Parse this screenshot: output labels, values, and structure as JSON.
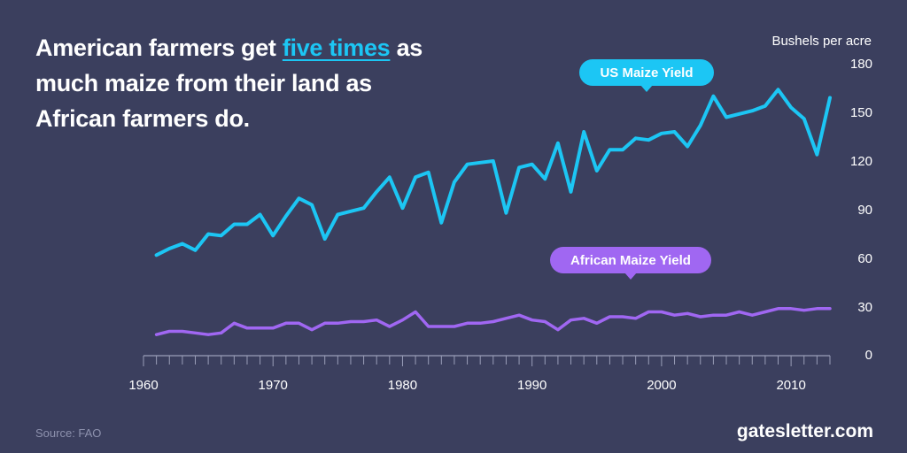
{
  "headline": {
    "part1": "American farmers get ",
    "highlight": "five times",
    "part2": " as much maize from their land as African farmers do."
  },
  "source": "Source: FAO",
  "brand": "gatesletter.com",
  "colors": {
    "background": "#3b3f5e",
    "us_series": "#1cc6f4",
    "africa_series": "#a067f2",
    "axis": "#9a9eb8"
  },
  "chart_data": {
    "type": "line",
    "ylabel": "Bushels per acre",
    "ylim": [
      0,
      180
    ],
    "yticks": [
      0,
      30,
      60,
      90,
      120,
      150,
      180
    ],
    "xlim": [
      1960,
      2013
    ],
    "xticks": [
      1960,
      1970,
      1980,
      1990,
      2000,
      2010
    ],
    "grid": false,
    "x": [
      1961,
      1962,
      1963,
      1964,
      1965,
      1966,
      1967,
      1968,
      1969,
      1970,
      1971,
      1972,
      1973,
      1974,
      1975,
      1976,
      1977,
      1978,
      1979,
      1980,
      1981,
      1982,
      1983,
      1984,
      1985,
      1986,
      1987,
      1988,
      1989,
      1990,
      1991,
      1992,
      1993,
      1994,
      1995,
      1996,
      1997,
      1998,
      1999,
      2000,
      2001,
      2002,
      2003,
      2004,
      2005,
      2006,
      2007,
      2008,
      2009,
      2010,
      2011,
      2012,
      2013
    ],
    "series": [
      {
        "name": "US Maize Yield",
        "color": "#1cc6f4",
        "values": [
          62,
          66,
          69,
          65,
          75,
          74,
          81,
          81,
          87,
          74,
          86,
          97,
          93,
          72,
          87,
          89,
          91,
          101,
          110,
          91,
          110,
          113,
          82,
          107,
          118,
          119,
          120,
          88,
          116,
          118,
          109,
          131,
          101,
          138,
          114,
          127,
          127,
          134,
          133,
          137,
          138,
          129,
          142,
          160,
          147,
          149,
          151,
          154,
          164,
          153,
          146,
          124,
          159
        ]
      },
      {
        "name": "African Maize Yield",
        "color": "#a067f2",
        "values": [
          13,
          15,
          15,
          14,
          13,
          14,
          20,
          17,
          17,
          17,
          20,
          20,
          16,
          20,
          20,
          21,
          21,
          22,
          18,
          22,
          27,
          18,
          18,
          18,
          20,
          20,
          21,
          23,
          25,
          22,
          21,
          16,
          22,
          23,
          20,
          24,
          24,
          23,
          27,
          27,
          25,
          26,
          24,
          25,
          25,
          27,
          25,
          27,
          29,
          29,
          28,
          29,
          29
        ]
      }
    ]
  }
}
